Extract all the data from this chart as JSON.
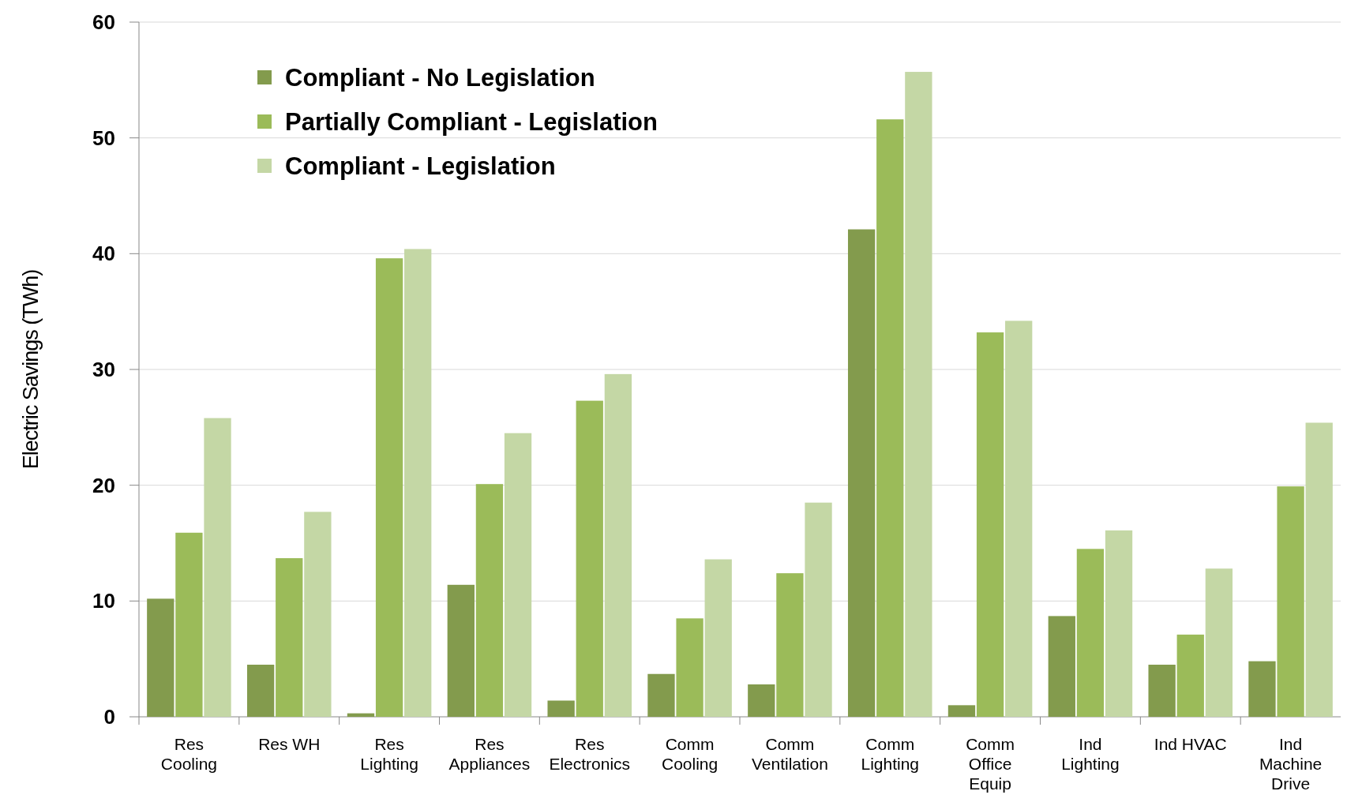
{
  "chart_data": {
    "type": "bar",
    "ylabel": "Electric Savings (TWh)",
    "categories": [
      "Res\nCooling",
      "Res WH",
      "Res\nLighting",
      "Res\nAppliances",
      "Res\nElectronics",
      "Comm\nCooling",
      "Comm\nVentilation",
      "Comm\nLighting",
      "Comm\nOffice\nEquip",
      "Ind\nLighting",
      "Ind HVAC",
      "Ind\nMachine\nDrive"
    ],
    "series": [
      {
        "name": "Compliant - No Legislation",
        "color": "#839b4d",
        "values": [
          10.2,
          4.5,
          0.3,
          11.4,
          1.4,
          3.7,
          2.8,
          42.1,
          1.0,
          8.7,
          4.5,
          4.8
        ]
      },
      {
        "name": "Partially Compliant - Legislation",
        "color": "#9bbb59",
        "values": [
          15.9,
          13.7,
          39.6,
          20.1,
          27.3,
          8.5,
          12.4,
          51.6,
          33.2,
          14.5,
          7.1,
          19.9
        ]
      },
      {
        "name": "Compliant - Legislation",
        "color": "#c4d7a5",
        "values": [
          25.8,
          17.7,
          40.4,
          24.5,
          29.6,
          13.6,
          18.5,
          55.7,
          34.2,
          16.1,
          12.8,
          25.4
        ]
      }
    ],
    "ylim": [
      0,
      60
    ],
    "yticks": [
      0,
      10,
      20,
      30,
      40,
      50,
      60
    ],
    "grid": "y",
    "legend": "top left"
  }
}
